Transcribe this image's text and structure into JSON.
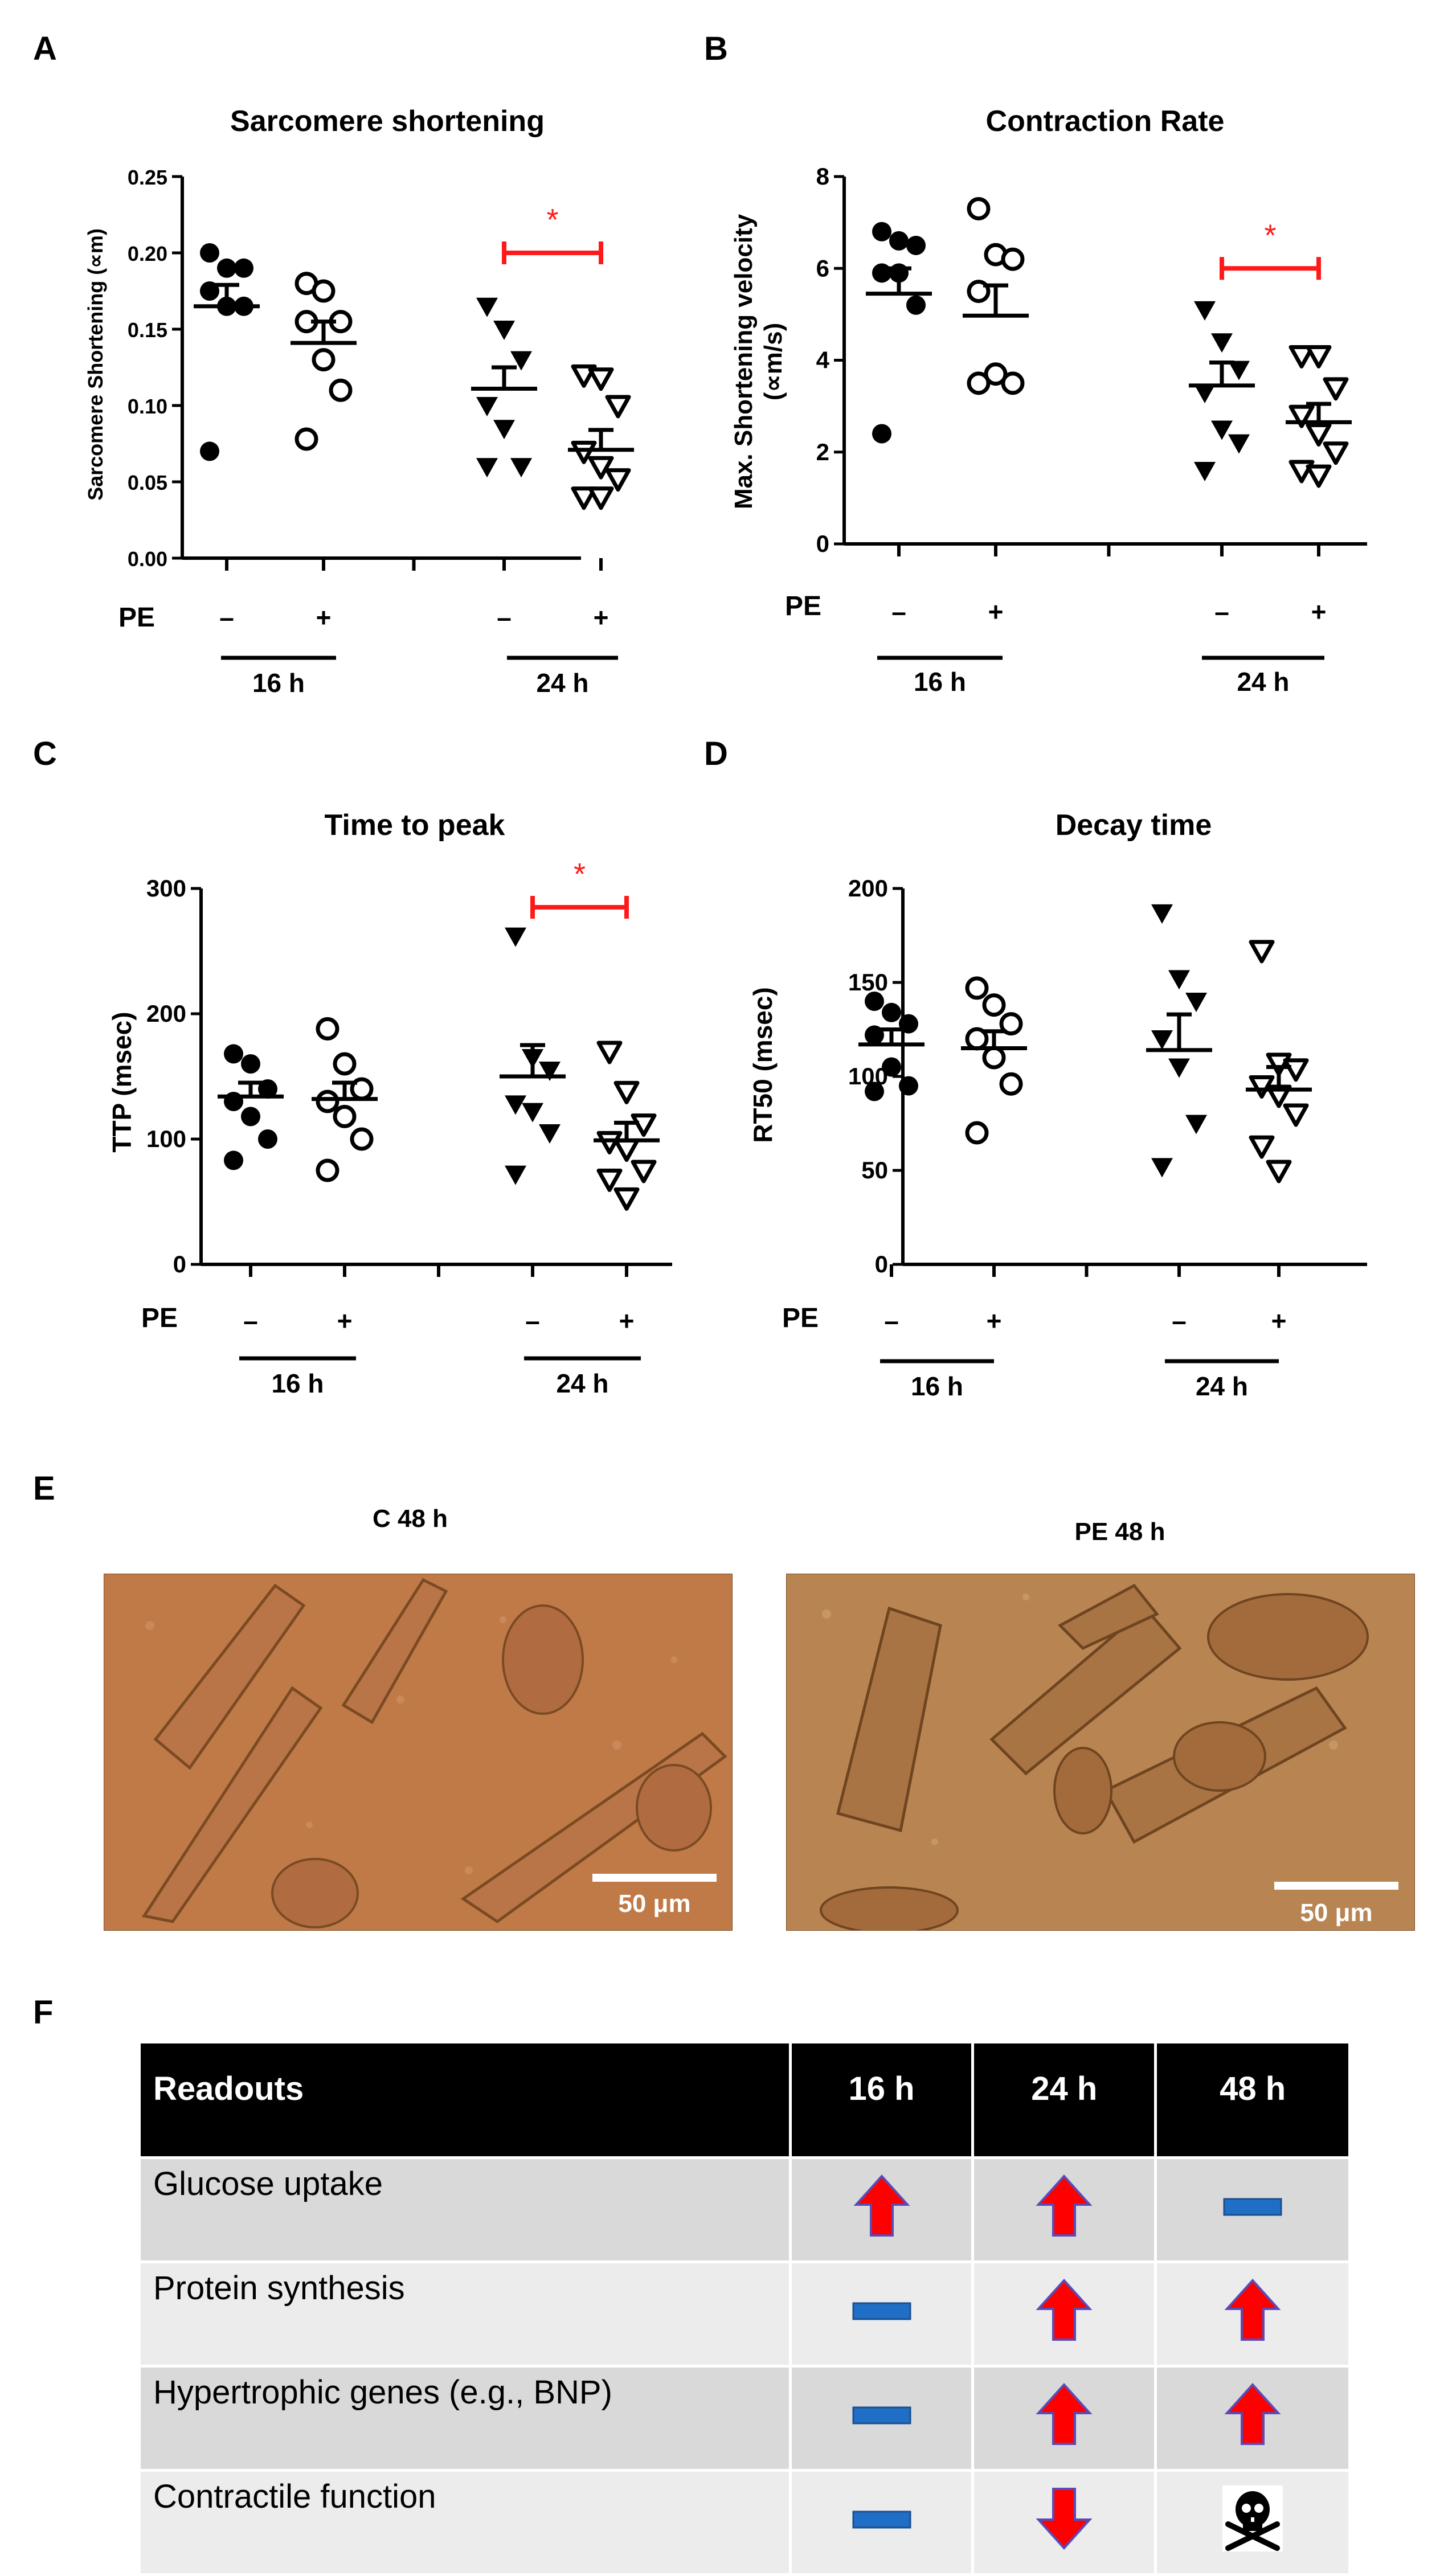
{
  "panels": {
    "A": {
      "letter": "A"
    },
    "B": {
      "letter": "B"
    },
    "C": {
      "letter": "C"
    },
    "D": {
      "letter": "D"
    },
    "E": {
      "letter": "E"
    },
    "F": {
      "letter": "F"
    }
  },
  "chart_data": [
    {
      "id": "A",
      "type": "scatter",
      "title": "Sarcomere shortening",
      "ylabel": "Sarcomere Shortening (∝m)",
      "ylim": [
        0,
        0.25
      ],
      "yticks": [
        "0.00",
        "0.05",
        "0.10",
        "0.15",
        "0.20",
        "0.25"
      ],
      "groups": [
        {
          "pe": "–",
          "time": "16 h",
          "marker": "circle-filled",
          "mean": 0.165,
          "sem_upper": 0.179,
          "values": [
            0.2,
            0.19,
            0.19,
            0.175,
            0.165,
            0.165,
            0.07
          ]
        },
        {
          "pe": "+",
          "time": "16 h",
          "marker": "circle-open",
          "mean": 0.141,
          "sem_upper": 0.155,
          "values": [
            0.18,
            0.175,
            0.155,
            0.155,
            0.13,
            0.11,
            0.078
          ]
        },
        {
          "pe": "–",
          "time": "24 h",
          "marker": "triangle-down-filled",
          "mean": 0.111,
          "sem_upper": 0.125,
          "values": [
            0.165,
            0.15,
            0.13,
            0.1,
            0.085,
            0.06,
            0.06
          ]
        },
        {
          "pe": "+",
          "time": "24 h",
          "marker": "triangle-down-open",
          "mean": 0.071,
          "sem_upper": 0.084,
          "values": [
            0.12,
            0.118,
            0.1,
            0.07,
            0.06,
            0.052,
            0.04,
            0.04
          ]
        }
      ],
      "pe_label": "PE",
      "group_labels": [
        "16 h",
        "24 h"
      ],
      "significance": {
        "between": [
          2,
          3
        ],
        "label": "*",
        "value": 0.2
      }
    },
    {
      "id": "B",
      "type": "scatter",
      "title": "Contraction Rate",
      "ylabel": "Max. Shortening velocity (∝m/s)",
      "ylim": [
        0,
        8
      ],
      "yticks": [
        "0",
        "2",
        "4",
        "6",
        "8"
      ],
      "groups": [
        {
          "pe": "–",
          "time": "16 h",
          "marker": "circle-filled",
          "mean": 5.45,
          "sem_upper": 6.0,
          "values": [
            6.8,
            6.6,
            6.5,
            5.9,
            5.9,
            5.2,
            2.4
          ]
        },
        {
          "pe": "+",
          "time": "16 h",
          "marker": "circle-open",
          "mean": 4.97,
          "sem_upper": 5.63,
          "values": [
            7.3,
            6.3,
            6.2,
            5.5,
            3.7,
            3.5,
            3.5
          ]
        },
        {
          "pe": "–",
          "time": "24 h",
          "marker": "triangle-down-filled",
          "mean": 3.45,
          "sem_upper": 3.95,
          "values": [
            5.1,
            4.4,
            3.8,
            3.3,
            2.5,
            2.2,
            1.6
          ]
        },
        {
          "pe": "+",
          "time": "24 h",
          "marker": "triangle-down-open",
          "mean": 2.65,
          "sem_upper": 3.05,
          "values": [
            4.1,
            4.1,
            3.4,
            2.8,
            2.4,
            2.0,
            1.6,
            1.5
          ]
        }
      ],
      "pe_label": "PE",
      "group_labels": [
        "16 h",
        "24 h"
      ],
      "significance": {
        "between": [
          2,
          3
        ],
        "label": "*",
        "value": 6.0
      }
    },
    {
      "id": "C",
      "type": "scatter",
      "title": "Time to peak",
      "ylabel": "TTP (msec)",
      "ylim": [
        0,
        300
      ],
      "yticks": [
        "0",
        "100",
        "200",
        "300"
      ],
      "groups": [
        {
          "pe": "–",
          "time": "16 h",
          "marker": "circle-filled",
          "mean": 134,
          "sem_upper": 145,
          "values": [
            168,
            160,
            140,
            130,
            118,
            100,
            83
          ]
        },
        {
          "pe": "+",
          "time": "16 h",
          "marker": "circle-open",
          "mean": 132,
          "sem_upper": 145,
          "values": [
            188,
            160,
            140,
            130,
            118,
            100,
            75
          ]
        },
        {
          "pe": "–",
          "time": "24 h",
          "marker": "triangle-down-filled",
          "mean": 150,
          "sem_upper": 175,
          "values": [
            262,
            165,
            155,
            128,
            122,
            105,
            72
          ]
        },
        {
          "pe": "+",
          "time": "24 h",
          "marker": "triangle-down-open",
          "mean": 99,
          "sem_upper": 113,
          "values": [
            170,
            138,
            112,
            98,
            92,
            75,
            68,
            53
          ]
        }
      ],
      "pe_label": "PE",
      "group_labels": [
        "16 h",
        "24 h"
      ],
      "significance": {
        "between": [
          2,
          3
        ],
        "label": "*",
        "value": 285
      }
    },
    {
      "id": "D",
      "type": "scatter",
      "title": "Decay time",
      "ylabel": "RT50 (msec)",
      "ylim": [
        0,
        200
      ],
      "yticks": [
        "0",
        "50",
        "100",
        "150",
        "200"
      ],
      "groups": [
        {
          "pe": "–",
          "time": "16 h",
          "marker": "circle-filled",
          "mean": 117,
          "sem_upper": 125,
          "values": [
            140,
            134,
            128,
            122,
            105,
            95,
            92
          ]
        },
        {
          "pe": "+",
          "time": "16 h",
          "marker": "circle-open",
          "mean": 115,
          "sem_upper": 124,
          "values": [
            147,
            138,
            128,
            120,
            110,
            96,
            70
          ]
        },
        {
          "pe": "–",
          "time": "24 h",
          "marker": "triangle-down-filled",
          "mean": 114,
          "sem_upper": 133,
          "values": [
            187,
            152,
            140,
            120,
            105,
            75,
            52
          ]
        },
        {
          "pe": "+",
          "time": "24 h",
          "marker": "triangle-down-open",
          "mean": 93,
          "sem_upper": 105,
          "values": [
            167,
            107,
            104,
            95,
            90,
            80,
            63,
            50
          ]
        }
      ],
      "pe_label": "PE",
      "group_labels": [
        "16 h",
        "24 h"
      ],
      "significance": null
    }
  ],
  "micrographs": [
    {
      "caption": "C 48 h",
      "scale_label": "50 μm"
    },
    {
      "caption": "PE 48 h",
      "scale_label": "50 μm"
    }
  ],
  "table": {
    "headers": [
      "Readouts",
      "16 h",
      "24 h",
      "48 h"
    ],
    "rows": [
      {
        "label": "Glucose uptake",
        "cells": [
          "up",
          "up",
          "unchanged"
        ]
      },
      {
        "label": "Protein synthesis",
        "cells": [
          "unchanged",
          "up",
          "up"
        ]
      },
      {
        "label": "Hypertrophic genes (e.g., BNP)",
        "cells": [
          "unchanged",
          "up",
          "up"
        ]
      },
      {
        "label": "Contractile function",
        "cells": [
          "unchanged",
          "down",
          "death"
        ]
      }
    ]
  },
  "colors": {
    "significance": "#ff1a1a",
    "arrow_fill": "#ff0000",
    "arrow_stroke": "#5a4bb8",
    "dash_fill": "#1f6fc6",
    "dash_stroke": "#1b4f8f",
    "micro_left_bg": "#c07a48",
    "micro_right_bg": "#b88552"
  }
}
